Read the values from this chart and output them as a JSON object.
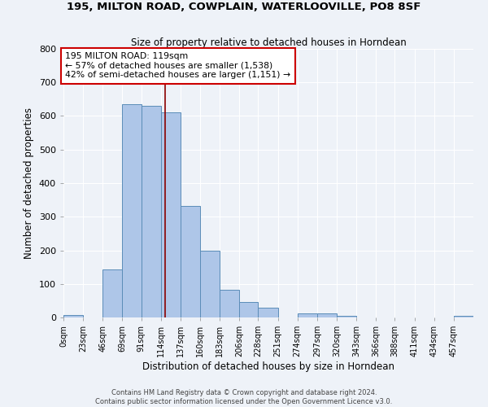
{
  "title1": "195, MILTON ROAD, COWPLAIN, WATERLOOVILLE, PO8 8SF",
  "title2": "Size of property relative to detached houses in Horndean",
  "xlabel": "Distribution of detached houses by size in Horndean",
  "ylabel": "Number of detached properties",
  "bar_labels": [
    "0sqm",
    "23sqm",
    "46sqm",
    "69sqm",
    "91sqm",
    "114sqm",
    "137sqm",
    "160sqm",
    "183sqm",
    "206sqm",
    "228sqm",
    "251sqm",
    "274sqm",
    "297sqm",
    "320sqm",
    "343sqm",
    "366sqm",
    "388sqm",
    "411sqm",
    "434sqm",
    "457sqm"
  ],
  "bar_values": [
    7,
    0,
    142,
    635,
    630,
    610,
    333,
    200,
    83,
    45,
    28,
    0,
    12,
    11,
    6,
    0,
    0,
    0,
    0,
    0,
    5
  ],
  "bin_edges": [
    0,
    23,
    46,
    69,
    91,
    114,
    137,
    160,
    183,
    206,
    228,
    251,
    274,
    297,
    320,
    343,
    366,
    388,
    411,
    434,
    457,
    480
  ],
  "bar_color": "#aec6e8",
  "bar_edge_color": "#5b8db8",
  "vline_x": 119,
  "vline_color": "#8b0000",
  "annotation_line1": "195 MILTON ROAD: 119sqm",
  "annotation_line2": "← 57% of detached houses are smaller (1,538)",
  "annotation_line3": "42% of semi-detached houses are larger (1,151) →",
  "annotation_box_color": "#ffffff",
  "annotation_box_edge_color": "#cc0000",
  "ylim": [
    0,
    800
  ],
  "yticks": [
    0,
    100,
    200,
    300,
    400,
    500,
    600,
    700,
    800
  ],
  "background_color": "#eef2f8",
  "grid_color": "#ffffff",
  "footer_line1": "Contains HM Land Registry data © Crown copyright and database right 2024.",
  "footer_line2": "Contains public sector information licensed under the Open Government Licence v3.0."
}
